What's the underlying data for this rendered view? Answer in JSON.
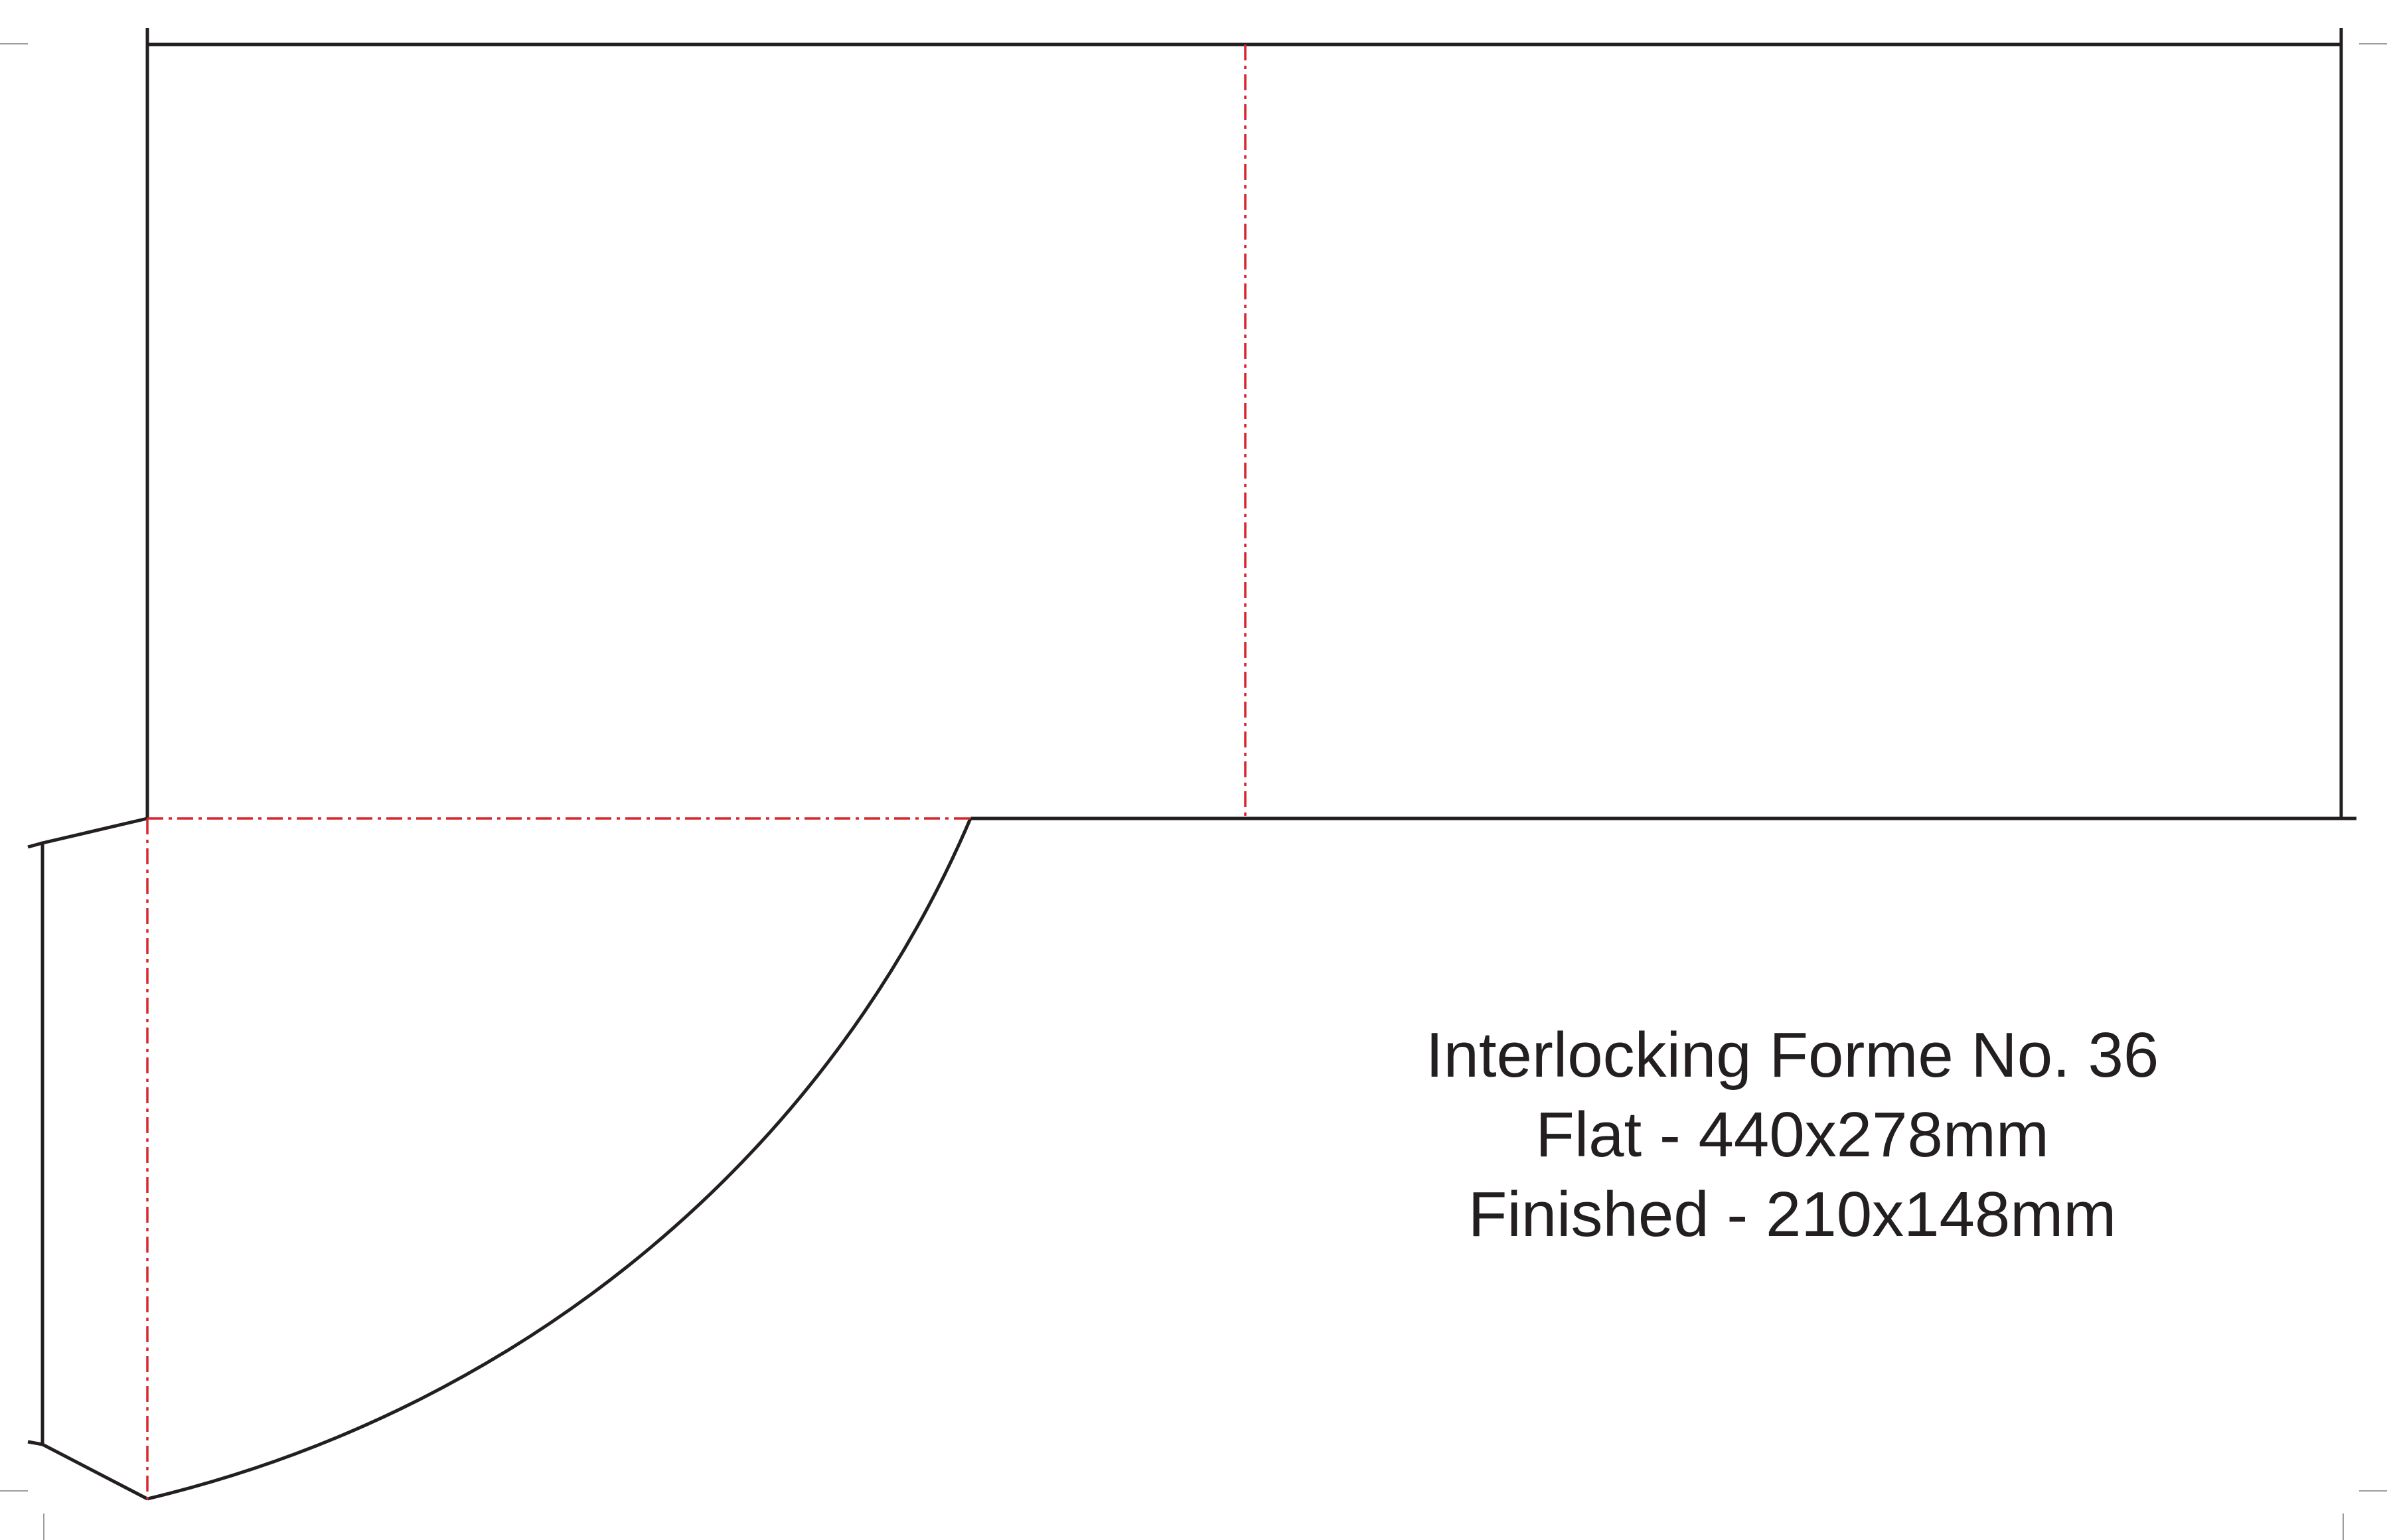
{
  "caption": {
    "title": "Interlocking Forme No. 36",
    "flat": "Flat - 440x278mm",
    "finished": "Finished - 210x148mm"
  },
  "colors": {
    "cut_line": "#231f20",
    "fold_line": "#d7262d",
    "crop_mark": "#9d9d9d",
    "background": "#ffffff"
  }
}
